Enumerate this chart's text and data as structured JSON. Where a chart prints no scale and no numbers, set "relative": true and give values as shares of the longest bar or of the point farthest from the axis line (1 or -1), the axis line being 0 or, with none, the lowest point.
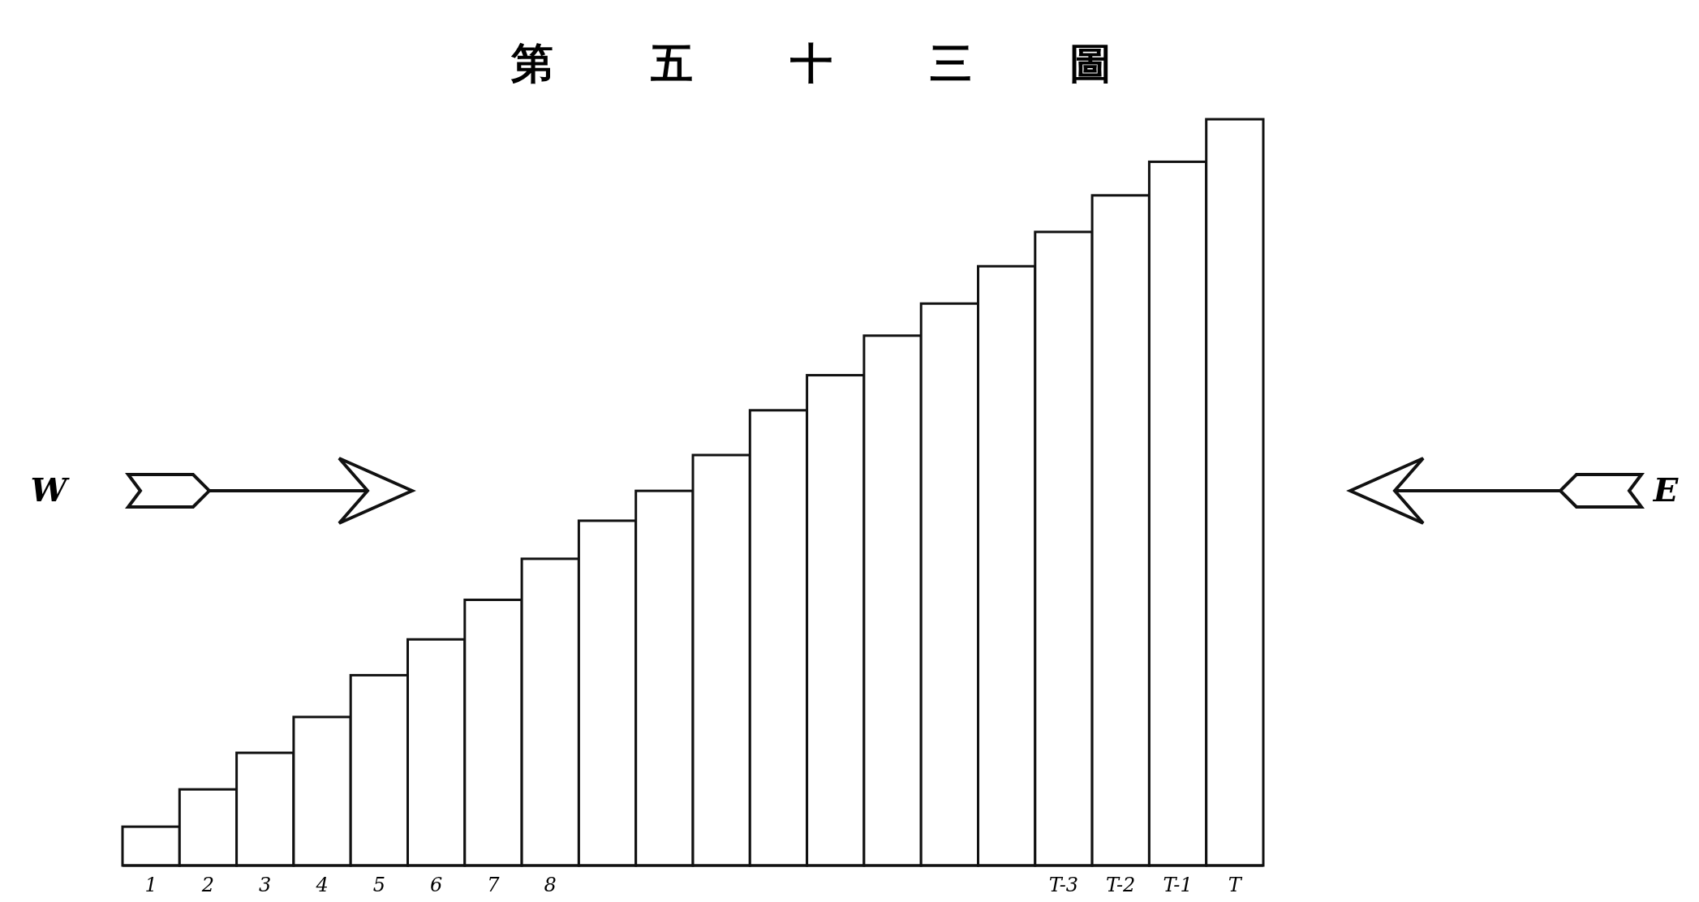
{
  "chart_data": {
    "type": "bar",
    "title": "第五十三圖",
    "relative": true,
    "color": "#ffffff",
    "categories": [
      "1",
      "2",
      "3",
      "4",
      "5",
      "6",
      "7",
      "8",
      null,
      null,
      null,
      null,
      null,
      null,
      null,
      null,
      "T-3",
      "T-2",
      "T-1",
      "T"
    ],
    "values": [
      0.052,
      0.102,
      0.151,
      0.199,
      0.255,
      0.303,
      0.356,
      0.411,
      0.462,
      0.502,
      0.55,
      0.61,
      0.657,
      0.71,
      0.753,
      0.803,
      0.849,
      0.898,
      0.943,
      1
    ],
    "annotations": [
      "W",
      "E"
    ]
  }
}
